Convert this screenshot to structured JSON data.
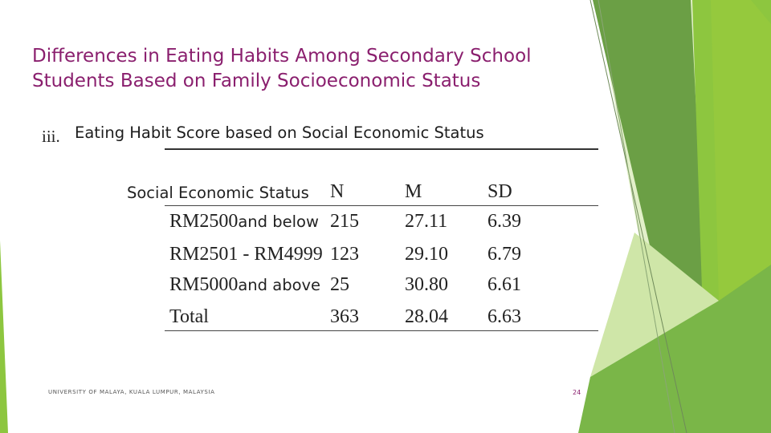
{
  "slide": {
    "title": "Differences in Eating Habits Among Secondary School Students Based on Family Socioeconomic Status",
    "subsection_number": "iii.",
    "subsection_title": "Eating Habit Score based on Social Economic Status",
    "table": {
      "headers": [
        "Social Economic Status",
        "N",
        "M",
        "SD"
      ],
      "rows": [
        {
          "prefix": "RM2500",
          "suffix": "and below",
          "n": "215",
          "m": "27.11",
          "sd": "6.39"
        },
        {
          "prefix": "RM2501 - RM4999",
          "suffix": "",
          "n": "123",
          "m": "29.10",
          "sd": "6.79"
        },
        {
          "prefix": "RM5000",
          "suffix": "and above",
          "n": "25",
          "m": "30.80",
          "sd": "6.61"
        },
        {
          "prefix": "Total",
          "suffix": "",
          "n": "363",
          "m": "28.04",
          "sd": "6.63"
        }
      ]
    },
    "footer": "UNIVERSITY OF MALAYA, KUALA LUMPUR, MALAYSIA",
    "page_number": "24"
  },
  "colors": {
    "title": "#8a1f6e",
    "green_dark": "#5a9a3c",
    "green_mid": "#7ab648",
    "green_light": "#a6d25a",
    "green_pale": "#d8ecb8"
  }
}
